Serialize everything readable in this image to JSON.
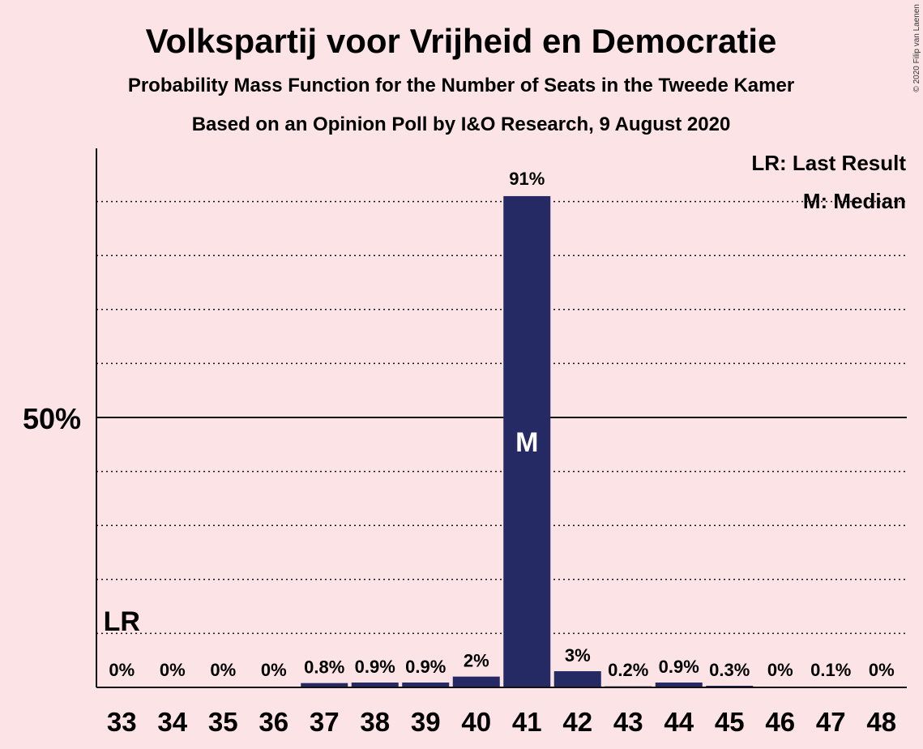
{
  "title": "Volkspartij voor Vrijheid en Democratie",
  "subtitle": "Probability Mass Function for the Number of Seats in the Tweede Kamer",
  "subtitle2": "Based on an Opinion Poll by I&O Research, 9 August 2020",
  "copyright": "© 2020 Filip van Laenen",
  "legend": {
    "last_result": "LR: Last Result",
    "median": "M: Median"
  },
  "colors": {
    "bar": "#252a64",
    "background": "#fce4e6",
    "median_text": "#ffffff"
  },
  "chart_data": {
    "type": "bar",
    "categories": [
      "33",
      "34",
      "35",
      "36",
      "37",
      "38",
      "39",
      "40",
      "41",
      "42",
      "43",
      "44",
      "45",
      "46",
      "47",
      "48"
    ],
    "values": [
      0,
      0,
      0,
      0,
      0.8,
      0.9,
      0.9,
      2,
      91,
      3,
      0.2,
      0.9,
      0.3,
      0,
      0.1,
      0
    ],
    "labels": [
      "0%",
      "0%",
      "0%",
      "0%",
      "0.8%",
      "0.9%",
      "0.9%",
      "2%",
      "91%",
      "3%",
      "0.2%",
      "0.9%",
      "0.3%",
      "0%",
      "0.1%",
      "0%"
    ],
    "ylim": [
      0,
      100
    ],
    "y_tick_label": "50%",
    "y_tick_value": 50,
    "gridlines": [
      10,
      20,
      30,
      40,
      60,
      70,
      80,
      90
    ],
    "last_result_category": "33",
    "last_result_label": "LR",
    "median_category": "41",
    "median_label": "M",
    "grid": true,
    "legend_position": "top-right"
  }
}
